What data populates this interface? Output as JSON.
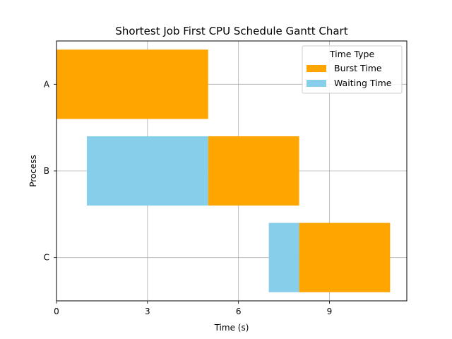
{
  "chart_data": {
    "type": "gantt",
    "title": "Shortest Job First CPU Schedule Gantt Chart",
    "xlabel": "Time (s)",
    "ylabel": "Process",
    "xlim": [
      0,
      11.55
    ],
    "xticks": [
      0,
      3,
      6,
      9
    ],
    "categories": [
      "A",
      "B",
      "C"
    ],
    "grid": true,
    "legend": {
      "title": "Time Type",
      "placement": "top-right",
      "entries": [
        {
          "label": "Burst Time",
          "color": "#FFA500"
        },
        {
          "label": "Waiting Time",
          "color": "#87CEEB"
        }
      ]
    },
    "series": [
      {
        "name": "Waiting Time",
        "color": "#87CEEB",
        "segments": [
          {
            "category": "B",
            "start": 1,
            "end": 5
          },
          {
            "category": "C",
            "start": 7,
            "end": 8
          }
        ]
      },
      {
        "name": "Burst Time",
        "color": "#FFA500",
        "segments": [
          {
            "category": "A",
            "start": 0,
            "end": 5
          },
          {
            "category": "B",
            "start": 5,
            "end": 8
          },
          {
            "category": "C",
            "start": 8,
            "end": 11
          }
        ]
      }
    ]
  }
}
